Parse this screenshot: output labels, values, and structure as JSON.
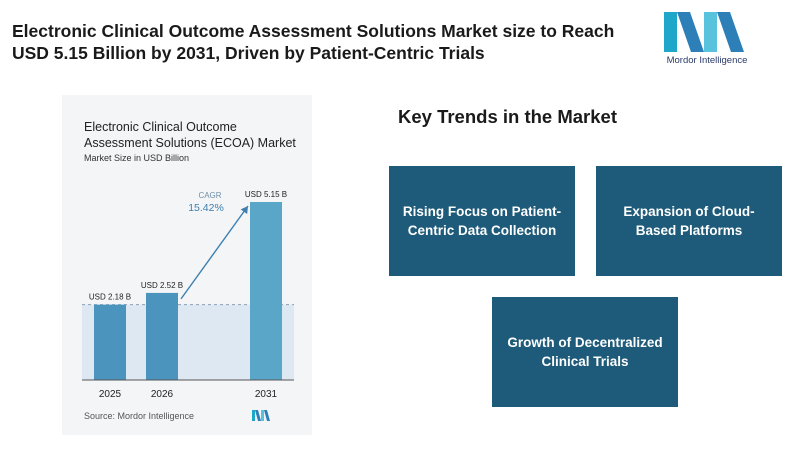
{
  "header": {
    "title": "Electronic Clinical Outcome Assessment Solutions Market size to Reach USD 5.15 Billion by 2031, Driven by Patient-Centric Trials",
    "logo_text": "Mordor Intelligence"
  },
  "chart_data": {
    "type": "bar",
    "title": "Electronic Clinical Outcome Assessment Solutions (ECOA) Market",
    "subtitle": "Market Size in USD Billion",
    "categories": [
      "2025",
      "2026",
      "2031"
    ],
    "values": [
      2.18,
      2.52,
      5.15
    ],
    "value_labels": [
      "USD 2.18 B",
      "USD 2.52 B",
      "USD 5.15 B"
    ],
    "cagr_label": "CAGR",
    "cagr_value": "15.42%",
    "source": "Source: Mordor Intelligence",
    "ylim": [
      0,
      5.15
    ],
    "colors": {
      "bar": "#4a94bd",
      "bar_2031": "#5aa6c8",
      "band": "#dde8f2",
      "arrow": "#3d7fb0"
    }
  },
  "trends": {
    "title": "Key Trends in the Market",
    "items": [
      "Rising Focus on Patient-Centric Data Collection",
      "Expansion of Cloud-Based Platforms",
      "Growth of Decentralized Clinical Trials"
    ]
  }
}
